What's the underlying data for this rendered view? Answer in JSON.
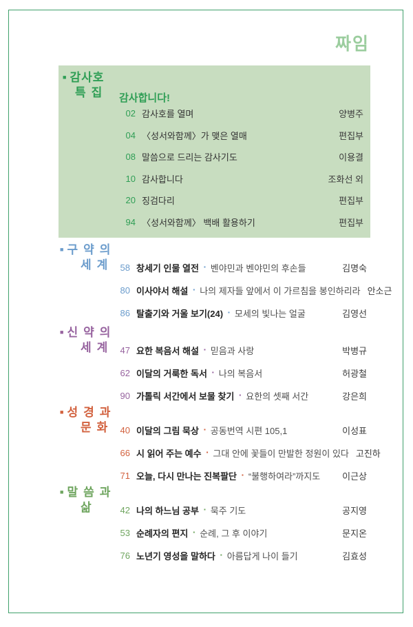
{
  "page": {
    "logo_text": "짜임"
  },
  "icons": {
    "section_bullet": "■",
    "item_separator": "▪"
  },
  "colors": {
    "frame": "#3fa06b",
    "logo": "#9bcd9e",
    "box_bg": "#c8ddc0",
    "special_accent": "#2f9e55"
  },
  "special": {
    "name_line1": "감사호",
    "name_line2": "특집",
    "title": "감사합니다!",
    "items": [
      {
        "page": "02",
        "title": "감사호를 열며",
        "author": "양병주"
      },
      {
        "page": "04",
        "title": "〈성서와함께〉가 맺은 열매",
        "author": "편집부"
      },
      {
        "page": "08",
        "title": "말씀으로 드리는 감사기도",
        "author": "이용결"
      },
      {
        "page": "10",
        "title": "감사합니다",
        "author": "조화선 외"
      },
      {
        "page": "20",
        "title": "징검다리",
        "author": "편집부"
      },
      {
        "page": "94",
        "title": "〈성서와함께〉 백배 활용하기",
        "author": "편집부"
      }
    ]
  },
  "sections": [
    {
      "name_line1": "구약의",
      "name_line2": "세계",
      "color": "#6b9ccc",
      "items": [
        {
          "page": "58",
          "title": "창세기 인물 열전",
          "subtitle": "벤야민과 벤야민의 후손들",
          "author": "김명숙"
        },
        {
          "page": "80",
          "title": "이사야서 해설",
          "subtitle": "나의 제자들 앞에서 이 가르침을 봉인하리라",
          "author": "안소근"
        },
        {
          "page": "86",
          "title": "탈출기와 거울 보기(24)",
          "subtitle": "모세의 빛나는 얼굴",
          "author": "김영선"
        }
      ]
    },
    {
      "name_line1": "신약의",
      "name_line2": "세계",
      "color": "#97639f",
      "items": [
        {
          "page": "47",
          "title": "요한 복음서 해설",
          "subtitle": "믿음과 사랑",
          "author": "박병규"
        },
        {
          "page": "62",
          "title": "이달의 거룩한 독서",
          "subtitle": "나의 복음서",
          "author": "허광철"
        },
        {
          "page": "90",
          "title": "가톨릭 서간에서 보물 찾기",
          "subtitle": "요한의 셋째 서간",
          "author": "강은희"
        }
      ]
    },
    {
      "name_line1": "성경과",
      "name_line2": "문화",
      "color": "#d2613e",
      "items": [
        {
          "page": "40",
          "title": "이달의 그림 묵상",
          "subtitle": "공동번역 시편 105,1",
          "author": "이성표"
        },
        {
          "page": "66",
          "title": "시 읽어 주는 예수",
          "subtitle": "그대 안에 꽃들이 만발한 정원이 있다",
          "author": "고진하"
        },
        {
          "page": "71",
          "title": "오늘, 다시 만나는 진복팔단",
          "subtitle": "“불행하여라”까지도",
          "author": "이근상"
        }
      ]
    },
    {
      "name_line1": "말씀과",
      "name_line2": "삶",
      "color": "#6fa55f",
      "items": [
        {
          "page": "42",
          "title": "나의 하느님 공부",
          "subtitle": "묵주 기도",
          "author": "공지영"
        },
        {
          "page": "53",
          "title": "순례자의 편지",
          "subtitle": "순례, 그 후 이야기",
          "author": "문지온"
        },
        {
          "page": "76",
          "title": "노년기 영성을 말하다",
          "subtitle": "아름답게 나이 들기",
          "author": "김효성"
        }
      ]
    }
  ]
}
